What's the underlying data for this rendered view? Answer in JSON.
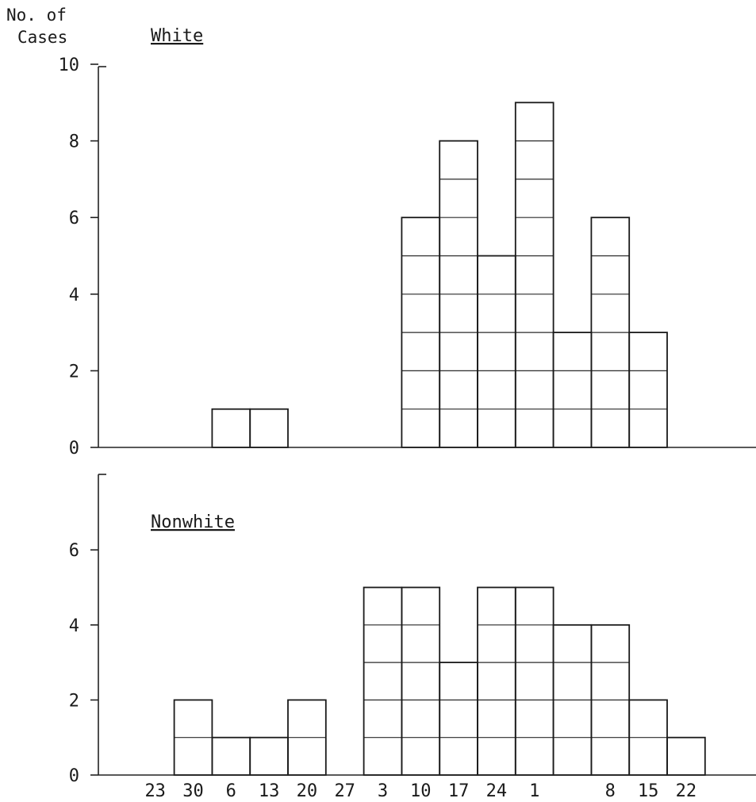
{
  "chart_data": [
    {
      "type": "bar",
      "ylabel": "No. of Cases",
      "series_label": "White",
      "ylim": [
        0,
        10
      ],
      "yticks": [
        "0",
        "2",
        "4",
        "6",
        "8",
        "10"
      ],
      "categories": [
        "",
        "23",
        "30",
        "6",
        "13",
        "20",
        "27",
        "3",
        "10",
        "17",
        "24",
        "1",
        "",
        "8",
        "15",
        "22",
        ""
      ],
      "values": [
        0,
        0,
        0,
        1,
        1,
        0,
        0,
        0,
        6,
        8,
        5,
        9,
        3,
        6,
        3,
        0,
        0
      ]
    },
    {
      "type": "bar",
      "series_label": "Nonwhite",
      "ylim": [
        0,
        8
      ],
      "yticks": [
        "0",
        "2",
        "4",
        "6"
      ],
      "categories": [
        "",
        "23",
        "30",
        "6",
        "13",
        "20",
        "27",
        "3",
        "10",
        "17",
        "24",
        "1",
        "",
        "8",
        "15",
        "22",
        ""
      ],
      "values": [
        0,
        0,
        2,
        1,
        1,
        2,
        0,
        5,
        5,
        3,
        5,
        5,
        4,
        4,
        2,
        1,
        0
      ]
    }
  ]
}
